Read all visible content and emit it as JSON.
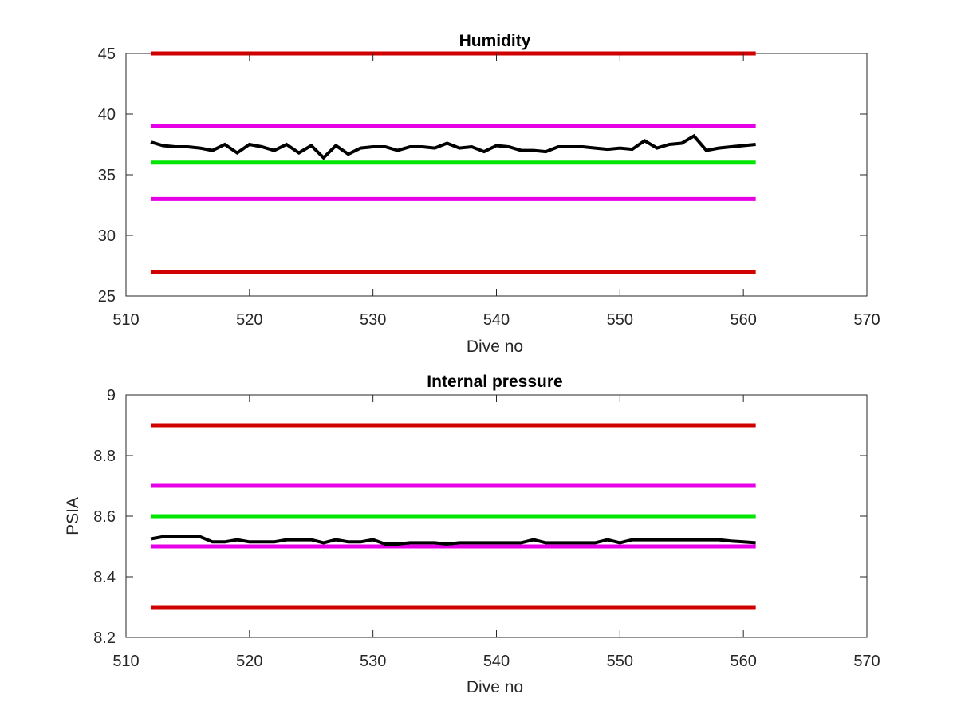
{
  "chart_data": [
    {
      "type": "line",
      "title": "Humidity",
      "xlabel": "Dive no",
      "ylabel": "",
      "xlim": [
        510,
        570
      ],
      "ylim": [
        25,
        45
      ],
      "xticks": [
        "510",
        "520",
        "530",
        "540",
        "550",
        "560",
        "570"
      ],
      "yticks": [
        "25",
        "30",
        "35",
        "40",
        "45"
      ],
      "grid": false,
      "reference_lines": [
        {
          "y": 45,
          "x": [
            512,
            561
          ],
          "color": "#d00000"
        },
        {
          "y": 39,
          "x": [
            512,
            561
          ],
          "color": "#e600e6"
        },
        {
          "y": 36,
          "x": [
            512,
            561
          ],
          "color": "#00e600"
        },
        {
          "y": 33,
          "x": [
            512,
            561
          ],
          "color": "#e600e6"
        },
        {
          "y": 27,
          "x": [
            512,
            561
          ],
          "color": "#d00000"
        }
      ],
      "series": [
        {
          "color": "#000000",
          "x": [
            512,
            513,
            514,
            515,
            516,
            517,
            518,
            519,
            520,
            521,
            522,
            523,
            524,
            525,
            526,
            527,
            528,
            529,
            530,
            531,
            532,
            533,
            534,
            535,
            536,
            537,
            538,
            539,
            540,
            541,
            542,
            543,
            544,
            545,
            546,
            547,
            548,
            549,
            550,
            551,
            552,
            553,
            554,
            555,
            556,
            557,
            558,
            559,
            560,
            561
          ],
          "values": [
            37.7,
            37.4,
            37.3,
            37.3,
            37.2,
            37.0,
            37.5,
            36.8,
            37.5,
            37.3,
            37.0,
            37.5,
            36.8,
            37.4,
            36.4,
            37.4,
            36.7,
            37.2,
            37.3,
            37.3,
            37.0,
            37.3,
            37.3,
            37.2,
            37.6,
            37.2,
            37.3,
            36.9,
            37.4,
            37.3,
            37.0,
            37.0,
            36.9,
            37.3,
            37.3,
            37.3,
            37.2,
            37.1,
            37.2,
            37.1,
            37.8,
            37.2,
            37.5,
            37.6,
            38.2,
            37.0,
            37.2,
            37.3,
            37.4,
            37.5
          ]
        }
      ]
    },
    {
      "type": "line",
      "title": "Internal pressure",
      "xlabel": "Dive no",
      "ylabel": "PSIA",
      "xlim": [
        510,
        570
      ],
      "ylim": [
        8.2,
        9.0
      ],
      "xticks": [
        "510",
        "520",
        "530",
        "540",
        "550",
        "560",
        "570"
      ],
      "yticks": [
        "8.2",
        "8.4",
        "8.6",
        "8.8",
        "9"
      ],
      "grid": false,
      "reference_lines": [
        {
          "y": 8.9,
          "x": [
            512,
            561
          ],
          "color": "#d00000"
        },
        {
          "y": 8.7,
          "x": [
            512,
            561
          ],
          "color": "#e600e6"
        },
        {
          "y": 8.6,
          "x": [
            512,
            561
          ],
          "color": "#00e600"
        },
        {
          "y": 8.5,
          "x": [
            512,
            561
          ],
          "color": "#e600e6"
        },
        {
          "y": 8.3,
          "x": [
            512,
            561
          ],
          "color": "#d00000"
        }
      ],
      "series": [
        {
          "color": "#000000",
          "x": [
            512,
            513,
            514,
            515,
            516,
            517,
            518,
            519,
            520,
            521,
            522,
            523,
            524,
            525,
            526,
            527,
            528,
            529,
            530,
            531,
            532,
            533,
            534,
            535,
            536,
            537,
            538,
            539,
            540,
            541,
            542,
            543,
            544,
            545,
            546,
            547,
            548,
            549,
            550,
            551,
            552,
            553,
            554,
            555,
            556,
            557,
            558,
            559,
            560,
            561
          ],
          "values": [
            8.525,
            8.532,
            8.532,
            8.532,
            8.532,
            8.515,
            8.515,
            8.522,
            8.515,
            8.515,
            8.515,
            8.522,
            8.522,
            8.522,
            8.512,
            8.522,
            8.515,
            8.515,
            8.522,
            8.508,
            8.508,
            8.512,
            8.512,
            8.512,
            8.508,
            8.512,
            8.512,
            8.512,
            8.512,
            8.512,
            8.512,
            8.522,
            8.512,
            8.512,
            8.512,
            8.512,
            8.512,
            8.522,
            8.512,
            8.522,
            8.522,
            8.522,
            8.522,
            8.522,
            8.522,
            8.522,
            8.522,
            8.518,
            8.515,
            8.512
          ]
        }
      ]
    }
  ]
}
